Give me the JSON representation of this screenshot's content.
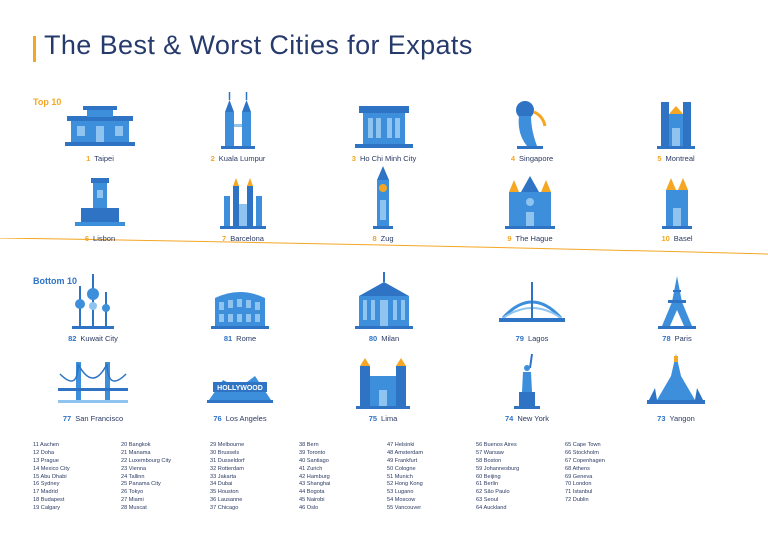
{
  "title": "The Best & Worst Cities for Expats",
  "sections": {
    "top_label": "Top 10",
    "bottom_label": "Bottom 10"
  },
  "colors": {
    "accent_orange": "#f5a623",
    "accent_blue": "#2e73c4",
    "title": "#263a6b",
    "icon_blue": "#3d8fdc",
    "icon_light": "#8fc3f0"
  },
  "top": [
    {
      "rank": "1",
      "name": "Taipei",
      "icon": "temple-icon"
    },
    {
      "rank": "2",
      "name": "Kuala Lumpur",
      "icon": "twin-towers-icon"
    },
    {
      "rank": "3",
      "name": "Ho Chi Minh City",
      "icon": "mausoleum-icon"
    },
    {
      "rank": "4",
      "name": "Singapore",
      "icon": "merlion-icon"
    },
    {
      "rank": "5",
      "name": "Montreal",
      "icon": "basilica-icon"
    },
    {
      "rank": "6",
      "name": "Lisbon",
      "icon": "belem-tower-icon"
    },
    {
      "rank": "7",
      "name": "Barcelona",
      "icon": "sagrada-familia-icon"
    },
    {
      "rank": "8",
      "name": "Zug",
      "icon": "clock-tower-icon"
    },
    {
      "rank": "9",
      "name": "The Hague",
      "icon": "binnenhof-icon"
    },
    {
      "rank": "10",
      "name": "Basel",
      "icon": "cathedral-icon"
    }
  ],
  "bottom": [
    {
      "rank": "82",
      "name": "Kuwait City",
      "icon": "kuwait-towers-icon"
    },
    {
      "rank": "81",
      "name": "Rome",
      "icon": "colosseum-icon"
    },
    {
      "rank": "80",
      "name": "Milan",
      "icon": "duomo-icon"
    },
    {
      "rank": "79",
      "name": "Lagos",
      "icon": "bridge-icon"
    },
    {
      "rank": "78",
      "name": "Paris",
      "icon": "eiffel-tower-icon"
    },
    {
      "rank": "77",
      "name": "San Francisco",
      "icon": "golden-gate-icon"
    },
    {
      "rank": "76",
      "name": "Los Angeles",
      "icon": "hollywood-sign-icon",
      "sign": "HOLLYWOOD"
    },
    {
      "rank": "75",
      "name": "Lima",
      "icon": "lima-cathedral-icon"
    },
    {
      "rank": "74",
      "name": "New York",
      "icon": "statue-of-liberty-icon"
    },
    {
      "rank": "73",
      "name": "Yangon",
      "icon": "pagoda-icon"
    }
  ],
  "rankings": [
    [
      "11 Aachen",
      "12 Doha",
      "13 Prague",
      "14 Mexico City",
      "15 Abu Dhabi",
      "16 Sydney",
      "17 Madrid",
      "18 Budapest",
      "19 Calgary"
    ],
    [
      "20 Bangkok",
      "21 Manama",
      "22 Luxembourg City",
      "23 Vienna",
      "24 Tallinn",
      "25 Panama City",
      "26 Tokyo",
      "27 Miami",
      "28 Muscat"
    ],
    [
      "29 Melbourne",
      "30 Brussels",
      "31 Dusseldorf",
      "32 Rotterdam",
      "33 Jakarta",
      "34 Dubai",
      "35 Houston",
      "36 Lausanne",
      "37 Chicago"
    ],
    [
      "38 Bern",
      "39 Toronto",
      "40 Santiago",
      "41 Zurich",
      "42 Hamburg",
      "43 Shanghai",
      "44 Bogota",
      "45 Nairobi",
      "46 Oslo"
    ],
    [
      "47 Helsinki",
      "48 Amsterdam",
      "49 Frankfurt",
      "50 Cologne",
      "51 Munich",
      "52 Hong Kong",
      "53 Lugano",
      "54 Moscow",
      "55 Vancouver"
    ],
    [
      "56 Buenos Aires",
      "57 Warsaw",
      "58 Boston",
      "59 Johannesburg",
      "60 Beijing",
      "61 Berlin",
      "62 São Paulo",
      "63 Seoul",
      "64 Auckland"
    ],
    [
      "65 Cape Town",
      "66 Stockholm",
      "67 Copenhagen",
      "68 Athens",
      "69 Geneva",
      "70 London",
      "71 Istanbul",
      "72 Dublin"
    ]
  ]
}
